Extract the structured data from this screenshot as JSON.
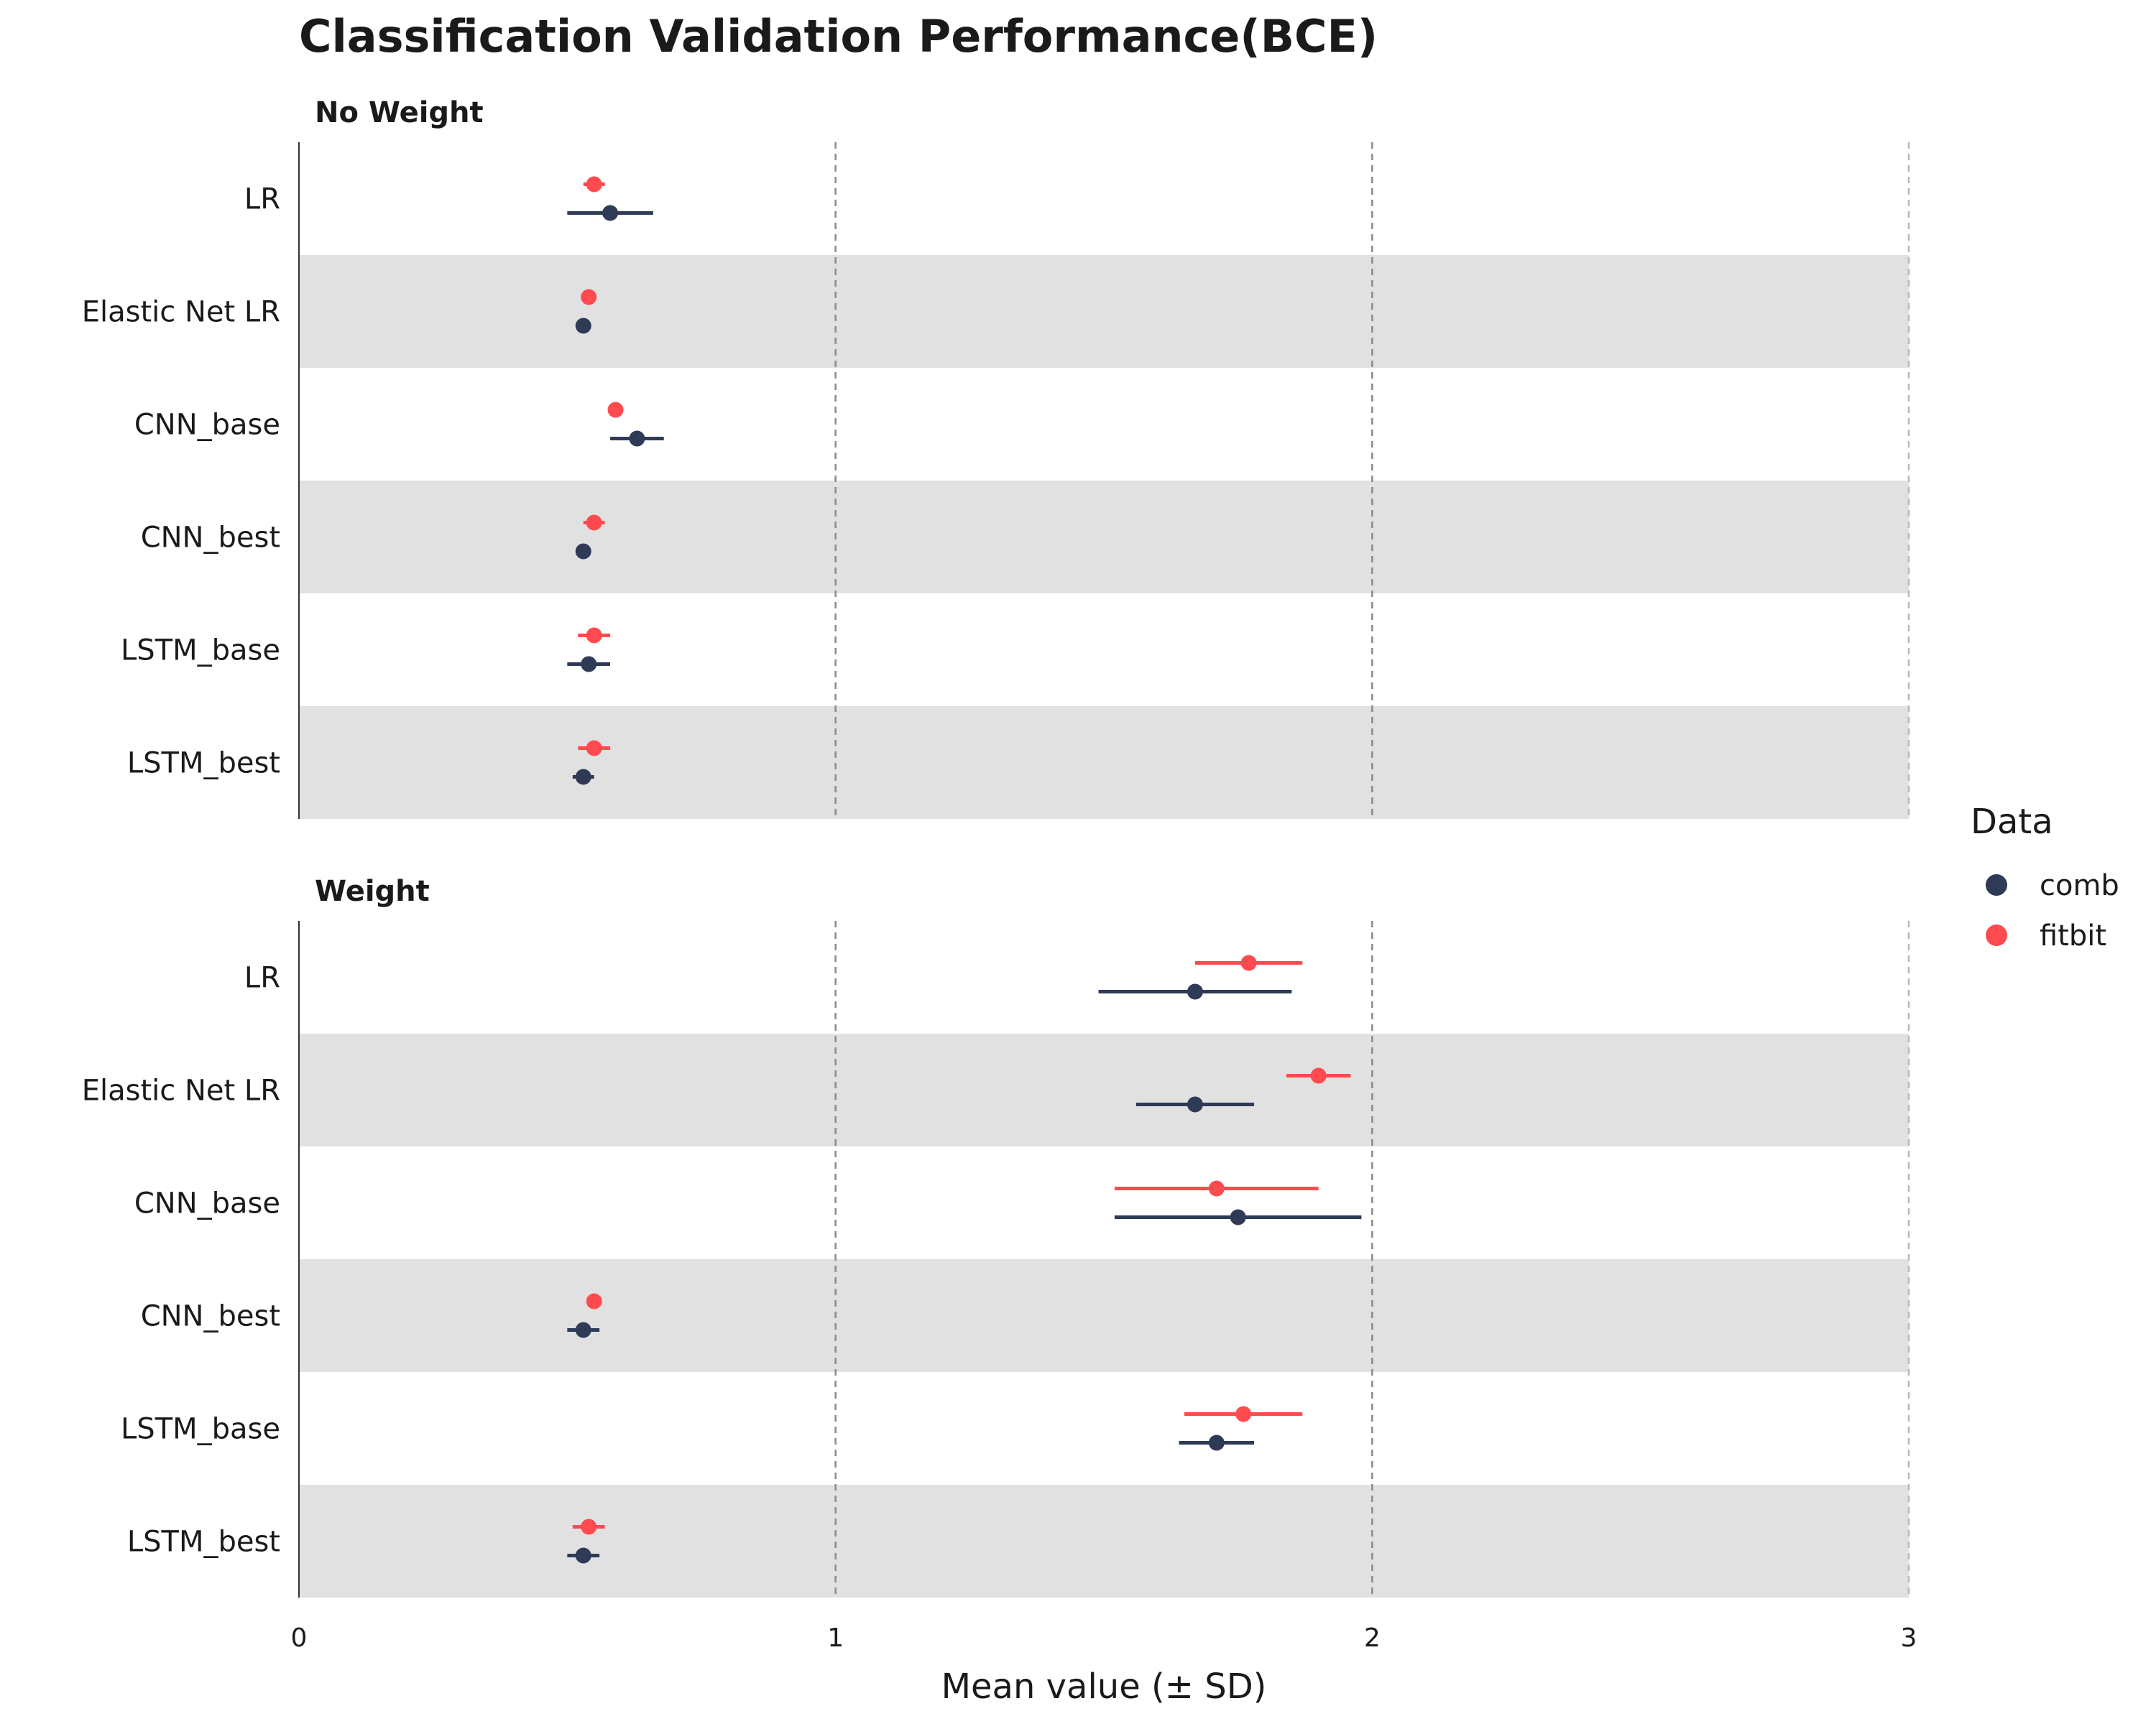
{
  "chart_data": {
    "type": "scatter",
    "title": "Classification Validation Performance(BCE)",
    "xlabel": "Mean value (± SD)",
    "xlim": [
      0,
      3
    ],
    "xticks": [
      0,
      1,
      2,
      3
    ],
    "grid": "x dashed",
    "legend": {
      "title": "Data",
      "placement": "right",
      "entries": [
        {
          "name": "comb",
          "color": "#2e3a56"
        },
        {
          "name": "fitbit",
          "color": "#ff4a4f"
        }
      ]
    },
    "categories": [
      "LR",
      "Elastic Net LR",
      "CNN_base",
      "CNN_best",
      "LSTM_base",
      "LSTM_best"
    ],
    "panels": [
      {
        "label": "No Weight",
        "series": [
          {
            "name": "fitbit",
            "color": "#ff4a4f",
            "mean": [
              0.55,
              0.54,
              0.59,
              0.55,
              0.55,
              0.55
            ],
            "sd": [
              0.02,
              0.0,
              0.0,
              0.02,
              0.03,
              0.03
            ]
          },
          {
            "name": "comb",
            "color": "#2e3a56",
            "mean": [
              0.58,
              0.53,
              0.63,
              0.53,
              0.54,
              0.53
            ],
            "sd": [
              0.08,
              0.0,
              0.05,
              0.01,
              0.04,
              0.02
            ]
          }
        ]
      },
      {
        "label": "Weight",
        "series": [
          {
            "name": "fitbit",
            "color": "#ff4a4f",
            "mean": [
              1.77,
              1.9,
              1.71,
              0.55,
              1.76,
              0.54
            ],
            "sd": [
              0.1,
              0.06,
              0.19,
              0.01,
              0.11,
              0.03
            ]
          },
          {
            "name": "comb",
            "color": "#2e3a56",
            "mean": [
              1.67,
              1.67,
              1.75,
              0.53,
              1.71,
              0.53
            ],
            "sd": [
              0.18,
              0.11,
              0.23,
              0.03,
              0.07,
              0.03
            ]
          }
        ]
      }
    ]
  }
}
